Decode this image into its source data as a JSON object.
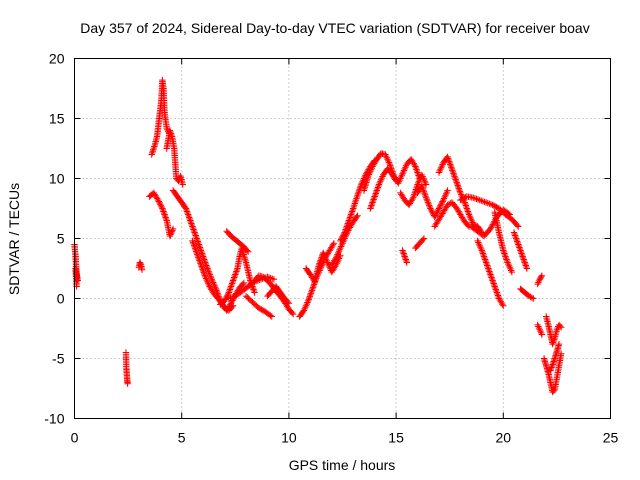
{
  "chart_data": {
    "type": "scatter",
    "title": "Day 357 of 2024, Sidereal Day-to-day VTEC variation (SDTVAR) for receiver boav",
    "xlabel": "GPS time / hours",
    "ylabel": "SDTVAR / TECUs",
    "xlim": [
      0,
      25
    ],
    "ylim": [
      -10,
      20
    ],
    "x_ticks": [
      "0",
      "5",
      "10",
      "15",
      "20",
      "25"
    ],
    "y_ticks": [
      "-10",
      "-5",
      "0",
      "5",
      "10",
      "15",
      "20"
    ],
    "grid": true,
    "marker": "plus",
    "color": "#ff0000",
    "series": [
      {
        "name": "t0",
        "x": [
          0.0,
          0.05,
          0.1,
          0.15,
          0.05,
          0.1
        ],
        "y": [
          4.5,
          3.5,
          2.0,
          1.5,
          2.5,
          1.0
        ]
      },
      {
        "name": "t1",
        "x": [
          2.4,
          2.42,
          2.44,
          2.46,
          2.48
        ],
        "y": [
          -4.5,
          -5.8,
          -6.3,
          -6.8,
          -7.1
        ]
      },
      {
        "name": "t2",
        "x": [
          3.0,
          3.05,
          3.1,
          3.15
        ],
        "y": [
          2.6,
          3.0,
          2.8,
          2.4
        ]
      },
      {
        "name": "t3",
        "x": [
          3.6,
          3.75,
          3.85,
          3.95,
          4.05,
          4.1,
          4.15,
          4.2,
          4.3,
          4.4
        ],
        "y": [
          12.0,
          12.8,
          13.5,
          15.0,
          16.5,
          18.2,
          17.5,
          15.5,
          14.2,
          13.8
        ]
      },
      {
        "name": "t4",
        "x": [
          4.3,
          4.45,
          4.55,
          4.65,
          4.75,
          4.85,
          4.95,
          5.05
        ],
        "y": [
          12.5,
          14.0,
          13.5,
          12.5,
          10.0,
          9.8,
          10.2,
          9.5
        ]
      },
      {
        "name": "t5",
        "x": [
          3.5,
          3.7,
          3.9,
          4.1,
          4.3,
          4.45,
          4.6
        ],
        "y": [
          8.5,
          8.8,
          8.2,
          7.5,
          6.5,
          5.2,
          5.8
        ]
      },
      {
        "name": "t6",
        "x": [
          4.6,
          4.8,
          5.0,
          5.2,
          5.4,
          5.6,
          5.8,
          6.0,
          6.2,
          6.4,
          6.6,
          6.8,
          7.0,
          7.2,
          7.4
        ],
        "y": [
          9.0,
          8.5,
          8.0,
          7.5,
          6.5,
          5.5,
          4.5,
          3.5,
          2.5,
          1.6,
          0.8,
          -0.2,
          -0.8,
          -1.0,
          -0.6
        ]
      },
      {
        "name": "t7",
        "x": [
          5.5,
          5.7,
          5.9,
          6.1,
          6.3,
          6.5,
          6.7,
          6.9,
          7.1,
          7.3,
          7.5,
          7.7,
          7.9
        ],
        "y": [
          4.8,
          3.8,
          2.8,
          1.8,
          1.0,
          0.4,
          0.0,
          -0.5,
          -1.0,
          -0.4,
          0.3,
          0.9,
          1.3
        ]
      },
      {
        "name": "t8",
        "x": [
          6.8,
          7.0,
          7.2,
          7.4,
          7.6,
          7.7,
          7.8,
          8.0,
          8.2,
          8.4
        ],
        "y": [
          -0.5,
          -0.2,
          0.5,
          1.5,
          2.5,
          3.5,
          4.2,
          3.0,
          1.5,
          0.5
        ]
      },
      {
        "name": "t9",
        "x": [
          7.1,
          7.3,
          7.5,
          7.7,
          7.9,
          8.1
        ],
        "y": [
          5.6,
          5.2,
          4.9,
          4.6,
          4.3,
          3.9
        ]
      },
      {
        "name": "t10",
        "x": [
          7.2,
          7.5,
          7.8,
          8.1,
          8.4,
          8.7,
          9.0,
          9.3
        ],
        "y": [
          0.0,
          0.2,
          0.6,
          1.0,
          1.4,
          1.6,
          1.8,
          1.6
        ]
      },
      {
        "name": "t11",
        "x": [
          8.0,
          8.3,
          8.6,
          8.9,
          9.2
        ],
        "y": [
          0.2,
          -0.3,
          -0.8,
          -1.1,
          -1.5
        ]
      },
      {
        "name": "t12",
        "x": [
          8.4,
          8.6,
          8.8,
          9.0,
          9.2,
          9.4,
          9.6,
          9.8,
          10.0,
          10.2
        ],
        "y": [
          1.5,
          1.9,
          1.8,
          1.5,
          1.1,
          0.6,
          0.2,
          -0.3,
          -0.9,
          -1.3
        ]
      },
      {
        "name": "t13",
        "x": [
          9.0,
          9.2,
          9.4,
          9.6,
          9.8,
          10.0
        ],
        "y": [
          0.2,
          0.6,
          1.0,
          0.5,
          0.0,
          -0.4
        ]
      },
      {
        "name": "t14",
        "x": [
          10.5,
          10.7,
          10.9,
          11.1,
          11.3,
          11.5,
          11.7,
          11.9,
          12.1
        ],
        "y": [
          -1.5,
          -1.0,
          -0.2,
          0.8,
          1.8,
          2.6,
          3.4,
          4.0,
          4.6
        ]
      },
      {
        "name": "t15",
        "x": [
          10.8,
          11.0,
          11.2,
          11.4,
          11.6,
          11.8,
          12.0,
          12.2,
          12.4
        ],
        "y": [
          2.5,
          2.0,
          1.4,
          2.8,
          3.8,
          3.0,
          2.2,
          2.8,
          3.6
        ]
      },
      {
        "name": "t16",
        "x": [
          12.4,
          12.6,
          12.8,
          13.0,
          13.2,
          13.4,
          13.6,
          13.8,
          14.0
        ],
        "y": [
          4.8,
          5.5,
          6.5,
          7.5,
          8.6,
          9.6,
          10.4,
          11.0,
          11.5
        ]
      },
      {
        "name": "t17",
        "x": [
          12.0,
          12.2,
          12.4,
          12.6,
          12.8,
          13.0,
          13.2
        ],
        "y": [
          2.8,
          3.4,
          4.2,
          5.0,
          5.8,
          6.4,
          6.9
        ]
      },
      {
        "name": "t18",
        "x": [
          13.5,
          13.7,
          13.9,
          14.1,
          14.3,
          14.5,
          14.7,
          14.9,
          15.1,
          15.3,
          15.5,
          15.7,
          15.9,
          16.1
        ],
        "y": [
          9.0,
          10.2,
          11.0,
          11.6,
          12.1,
          12.0,
          11.2,
          10.2,
          9.6,
          10.4,
          11.2,
          11.6,
          11.0,
          10.0
        ]
      },
      {
        "name": "t19",
        "x": [
          13.8,
          14.0,
          14.2,
          14.4,
          14.6,
          14.8,
          15.0
        ],
        "y": [
          7.5,
          8.5,
          9.5,
          10.3,
          10.8,
          10.4,
          9.8
        ]
      },
      {
        "name": "t20",
        "x": [
          15.2,
          15.4,
          15.6,
          15.8,
          16.0,
          16.2,
          16.4
        ],
        "y": [
          8.8,
          8.2,
          7.8,
          8.4,
          9.5,
          10.3,
          9.5
        ]
      },
      {
        "name": "t21",
        "x": [
          15.3,
          15.4,
          15.5
        ],
        "y": [
          4.0,
          3.5,
          3.0
        ]
      },
      {
        "name": "t22",
        "x": [
          15.9,
          16.1,
          16.3
        ],
        "y": [
          4.2,
          4.6,
          5.0
        ]
      },
      {
        "name": "t23",
        "x": [
          16.0,
          16.2,
          16.4,
          16.6,
          16.8,
          17.0,
          17.2,
          17.4
        ],
        "y": [
          8.8,
          9.4,
          8.4,
          7.5,
          6.8,
          7.5,
          8.2,
          9.0
        ]
      },
      {
        "name": "t24",
        "x": [
          17.0,
          17.2,
          17.4,
          17.6,
          17.8,
          18.0,
          18.2,
          18.4,
          18.6,
          18.8,
          19.0
        ],
        "y": [
          10.5,
          11.3,
          11.8,
          10.8,
          9.8,
          8.8,
          8.0,
          7.0,
          6.2,
          6.0,
          5.5
        ]
      },
      {
        "name": "t25",
        "x": [
          16.8,
          17.0,
          17.2,
          17.4,
          17.6,
          17.8,
          18.0,
          18.2,
          18.4
        ],
        "y": [
          6.0,
          6.6,
          7.2,
          7.8,
          8.0,
          7.6,
          7.0,
          6.4,
          6.0
        ]
      },
      {
        "name": "t26",
        "x": [
          18.0,
          18.3,
          18.6,
          18.9,
          19.2,
          19.5,
          19.8,
          20.1,
          20.4,
          20.7
        ],
        "y": [
          8.2,
          8.5,
          8.4,
          8.2,
          8.0,
          7.8,
          7.5,
          7.0,
          6.6,
          6.0
        ]
      },
      {
        "name": "t27",
        "x": [
          18.5,
          18.8,
          19.1,
          19.4,
          19.7,
          20.0,
          20.3
        ],
        "y": [
          6.0,
          5.6,
          5.2,
          5.8,
          6.8,
          7.4,
          7.0
        ]
      },
      {
        "name": "t28",
        "x": [
          18.8,
          19.0,
          19.2,
          19.4,
          19.6,
          19.8,
          20.0
        ],
        "y": [
          4.8,
          4.0,
          3.0,
          2.0,
          1.0,
          0.0,
          -0.6
        ]
      },
      {
        "name": "t29",
        "x": [
          19.6,
          19.8,
          20.0,
          20.2,
          20.4
        ],
        "y": [
          7.2,
          5.5,
          4.0,
          3.0,
          2.2
        ]
      },
      {
        "name": "t30",
        "x": [
          20.5,
          20.7,
          20.9,
          21.1
        ],
        "y": [
          5.5,
          4.5,
          3.5,
          2.5
        ]
      },
      {
        "name": "t31",
        "x": [
          20.8,
          21.0,
          21.2,
          21.4
        ],
        "y": [
          0.8,
          0.5,
          0.2,
          0.0
        ]
      },
      {
        "name": "t32",
        "x": [
          21.6,
          21.7,
          21.8
        ],
        "y": [
          1.2,
          1.6,
          1.9
        ]
      },
      {
        "name": "t33",
        "x": [
          21.6,
          21.7,
          21.8
        ],
        "y": [
          -2.2,
          -2.6,
          -3.0
        ]
      },
      {
        "name": "t34",
        "x": [
          21.9,
          22.0,
          22.1,
          22.2,
          22.3,
          22.4,
          22.5,
          22.6,
          22.7
        ],
        "y": [
          -5.0,
          -5.6,
          -6.2,
          -7.0,
          -7.8,
          -7.6,
          -6.6,
          -5.6,
          -4.6
        ]
      },
      {
        "name": "t35",
        "x": [
          22.0,
          22.1,
          22.2,
          22.3,
          22.4,
          22.5,
          22.6,
          22.7
        ],
        "y": [
          -1.5,
          -2.2,
          -3.0,
          -3.8,
          -3.3,
          -2.6,
          -2.2,
          -2.4
        ]
      },
      {
        "name": "t36",
        "x": [
          22.2,
          22.3,
          22.4,
          22.5,
          22.6
        ],
        "y": [
          -6.0,
          -5.5,
          -5.0,
          -4.4,
          -3.8
        ]
      }
    ]
  }
}
